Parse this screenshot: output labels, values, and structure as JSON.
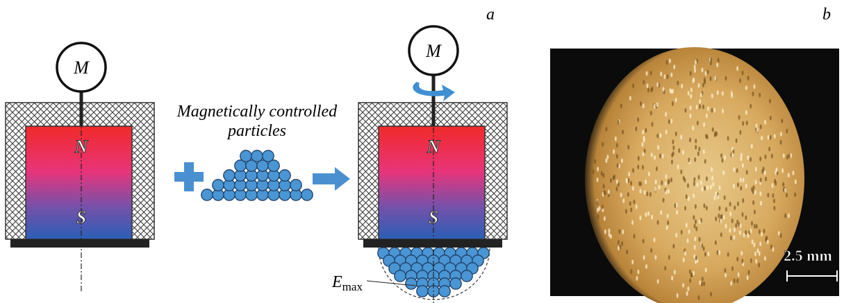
{
  "panel_a": {
    "label": "a",
    "caption": [
      "Magnetically controlled",
      "particles"
    ],
    "left_setup": {
      "motor": "M",
      "north": "N",
      "south": "S"
    },
    "right_setup": {
      "motor": "M",
      "north": "N",
      "south": "S"
    },
    "field_label": {
      "symbol": "E",
      "subscript": "max"
    }
  },
  "panel_b": {
    "label": "b",
    "scale_bar": "2.5 mm"
  }
}
